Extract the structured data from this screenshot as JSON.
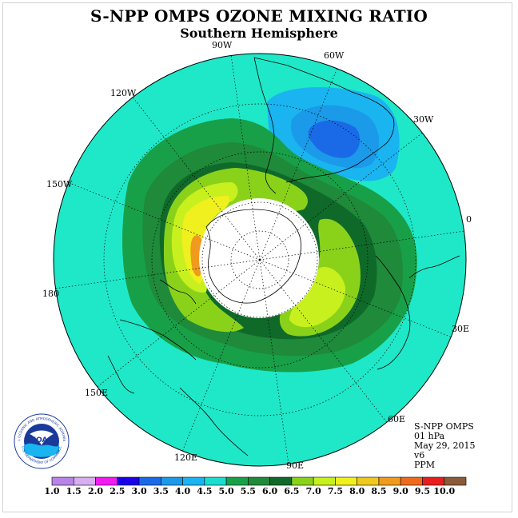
{
  "title": "S-NPP OMPS OZONE MIXING RATIO",
  "subtitle": "Southern Hemisphere",
  "logo": {
    "text": "NOAA",
    "ring_text": "NATIONAL OCEANIC AND ATMOSPHERIC ADMINISTRATION",
    "ring_bottom": "U.S. DEPARTMENT OF COMMERCE"
  },
  "longitude_labels": {
    "w90": "90W",
    "w60": "60W",
    "w30": "30W",
    "e0": "0",
    "e30": "30E",
    "e60": "60E",
    "e90": "90E",
    "e120": "120E",
    "e150": "150E",
    "e180": "180",
    "w150": "150W",
    "w120": "120W"
  },
  "info": {
    "instrument": "S-NPP OMPS",
    "level": "01 hPa",
    "date": "May 29, 2015",
    "version": "v6",
    "units": "PPM"
  },
  "colorbar": {
    "labels": [
      "1.0",
      "1.5",
      "2.0",
      "2.5",
      "3.0",
      "3.5",
      "4.0",
      "4.5",
      "5.0",
      "5.5",
      "6.0",
      "6.5",
      "7.0",
      "7.5",
      "8.0",
      "8.5",
      "9.0",
      "9.5",
      "10.0"
    ],
    "colors": [
      "#b884e8",
      "#d9aef0",
      "#f01cf0",
      "#1a00e8",
      "#1a6ae8",
      "#1a9ae8",
      "#1ab4f0",
      "#1adcd0",
      "#18a048",
      "#1e8a3a",
      "#0f6a2a",
      "#8ad21a",
      "#c8f01e",
      "#f0f01e",
      "#f0c81e",
      "#f09a1e",
      "#f06a1e",
      "#e81e1e",
      "#8a5a3a"
    ]
  },
  "fields": {
    "background": "#1ee8c8",
    "blue_outer": "#1ab4f0",
    "blue_mid": "#1a9ae8",
    "blue_inner": "#1a6ae8",
    "green_5": "#18a048",
    "green_55": "#1e8a3a",
    "green_6": "#0f6a2a",
    "lime_65": "#8ad21a",
    "lime_7": "#c8f01e",
    "yellow_75": "#f0f01e",
    "orange_8": "#f0c81e",
    "orange_85": "#f09a1e"
  }
}
